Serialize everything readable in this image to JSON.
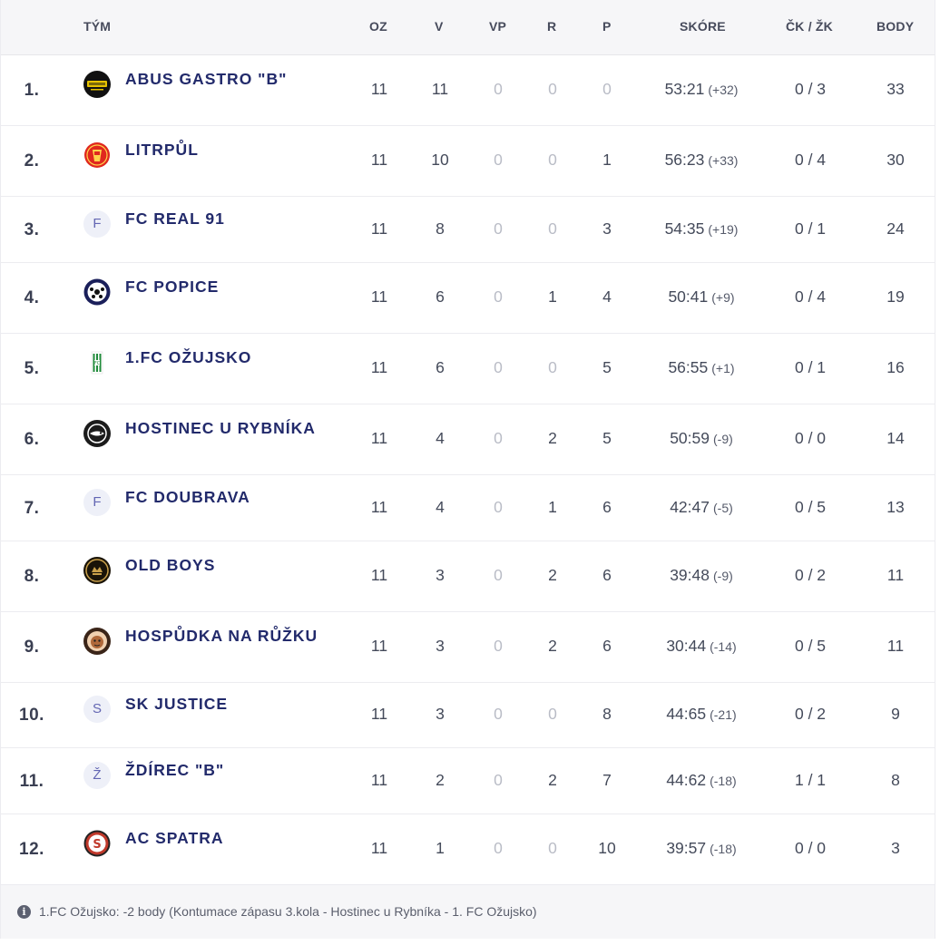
{
  "headers": {
    "team": "TÝM",
    "played": "OZ",
    "wins": "V",
    "ot_wins": "VP",
    "draws": "R",
    "losses": "P",
    "score": "SKÓRE",
    "cards": "ČK / ŽK",
    "points": "BODY"
  },
  "rows": [
    {
      "rank": "1.",
      "team": "ABUS GASTRO \"B\"",
      "logo": {
        "type": "image",
        "icon": "abus-gastro-logo-icon",
        "bg": "#111111",
        "fg": "#e6c200"
      },
      "played": "11",
      "wins": "11",
      "ot_wins": "0",
      "draws": "0",
      "losses": "0",
      "score": "53:21",
      "diff": "(+32)",
      "cards": "0 / 3",
      "points": "33"
    },
    {
      "rank": "2.",
      "team": "LITRPŮL",
      "logo": {
        "type": "image",
        "icon": "litrpul-logo-icon",
        "bg": "#e0281e",
        "fg": "#ffd24a"
      },
      "played": "11",
      "wins": "10",
      "ot_wins": "0",
      "draws": "0",
      "losses": "1",
      "score": "56:23",
      "diff": "(+33)",
      "cards": "0 / 4",
      "points": "30"
    },
    {
      "rank": "3.",
      "team": "FC REAL 91",
      "logo": {
        "type": "letter",
        "letter": "F"
      },
      "played": "11",
      "wins": "8",
      "ot_wins": "0",
      "draws": "0",
      "losses": "3",
      "score": "54:35",
      "diff": "(+19)",
      "cards": "0 / 1",
      "points": "24"
    },
    {
      "rank": "4.",
      "team": "FC POPICE",
      "logo": {
        "type": "image",
        "icon": "fc-popice-logo-icon",
        "bg": "#ffffff",
        "fg": "#1a1f5a"
      },
      "played": "11",
      "wins": "6",
      "ot_wins": "0",
      "draws": "1",
      "losses": "4",
      "score": "50:41",
      "diff": "(+9)",
      "cards": "0 / 4",
      "points": "19"
    },
    {
      "rank": "5.",
      "team": "1.FC OŽUJSKO",
      "logo": {
        "type": "image",
        "icon": "fc-ozujsko-logo-icon",
        "bg": "#1f8a3a",
        "fg": "#ffffff"
      },
      "played": "11",
      "wins": "6",
      "ot_wins": "0",
      "draws": "0",
      "losses": "5",
      "score": "56:55",
      "diff": "(+1)",
      "cards": "0 / 1",
      "points": "16"
    },
    {
      "rank": "6.",
      "team": "HOSTINEC U RYBNÍKA",
      "logo": {
        "type": "image",
        "icon": "hostinec-logo-icon",
        "bg": "#1b1b1b",
        "fg": "#ffffff"
      },
      "played": "11",
      "wins": "4",
      "ot_wins": "0",
      "draws": "2",
      "losses": "5",
      "score": "50:59",
      "diff": "(-9)",
      "cards": "0 / 0",
      "points": "14"
    },
    {
      "rank": "7.",
      "team": "FC DOUBRAVA",
      "logo": {
        "type": "letter",
        "letter": "F"
      },
      "played": "11",
      "wins": "4",
      "ot_wins": "0",
      "draws": "1",
      "losses": "6",
      "score": "42:47",
      "diff": "(-5)",
      "cards": "0 / 5",
      "points": "13"
    },
    {
      "rank": "8.",
      "team": "OLD BOYS",
      "logo": {
        "type": "image",
        "icon": "old-boys-logo-icon",
        "bg": "#1a1408",
        "fg": "#c9a04a"
      },
      "played": "11",
      "wins": "3",
      "ot_wins": "0",
      "draws": "2",
      "losses": "6",
      "score": "39:48",
      "diff": "(-9)",
      "cards": "0 / 2",
      "points": "11"
    },
    {
      "rank": "9.",
      "team": "HOSPŮDKA NA RŮŽKU",
      "logo": {
        "type": "image",
        "icon": "hospudka-logo-icon",
        "bg": "#3a2418",
        "fg": "#f0d0b0"
      },
      "played": "11",
      "wins": "3",
      "ot_wins": "0",
      "draws": "2",
      "losses": "6",
      "score": "30:44",
      "diff": "(-14)",
      "cards": "0 / 5",
      "points": "11"
    },
    {
      "rank": "10.",
      "team": "SK JUSTICE",
      "logo": {
        "type": "letter",
        "letter": "S"
      },
      "played": "11",
      "wins": "3",
      "ot_wins": "0",
      "draws": "0",
      "losses": "8",
      "score": "44:65",
      "diff": "(-21)",
      "cards": "0 / 2",
      "points": "9"
    },
    {
      "rank": "11.",
      "team": "ŽDÍREC \"B\"",
      "logo": {
        "type": "letter",
        "letter": "Ž"
      },
      "played": "11",
      "wins": "2",
      "ot_wins": "0",
      "draws": "2",
      "losses": "7",
      "score": "44:62",
      "diff": "(-18)",
      "cards": "1 / 1",
      "points": "8"
    },
    {
      "rank": "12.",
      "team": "AC SPATRA",
      "logo": {
        "type": "image",
        "icon": "ac-spatra-logo-icon",
        "bg": "#ffffff",
        "fg": "#c0392b"
      },
      "played": "11",
      "wins": "1",
      "ot_wins": "0",
      "draws": "0",
      "losses": "10",
      "score": "39:57",
      "diff": "(-18)",
      "cards": "0 / 0",
      "points": "3"
    }
  ],
  "footer": {
    "icon": "info-icon",
    "note": "1.FC Ožujsko: -2 body (Kontumace zápasu 3.kola - Hostinec u Rybníka - 1. FC Ožujsko)"
  }
}
